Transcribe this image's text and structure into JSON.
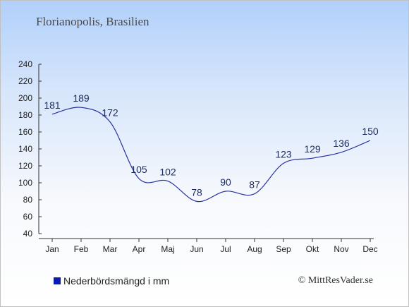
{
  "header": {
    "title": "Florianopolis, Brasilien"
  },
  "chart_data": {
    "type": "line",
    "categories": [
      "Jan",
      "Feb",
      "Mar",
      "Apr",
      "Maj",
      "Jun",
      "Jul",
      "Aug",
      "Sep",
      "Okt",
      "Nov",
      "Dec"
    ],
    "series": [
      {
        "name": "Nederbördsmängd i mm",
        "values": [
          181,
          189,
          172,
          105,
          102,
          78,
          90,
          87,
          123,
          129,
          136,
          150
        ]
      }
    ],
    "ylim": [
      40,
      240
    ],
    "yticks": [
      40,
      60,
      80,
      100,
      120,
      140,
      160,
      180,
      200,
      220,
      240
    ],
    "xlabel": "",
    "ylabel": "",
    "grid": false,
    "legend_position": "bottom-left",
    "line_color": "#2633a1",
    "label_color": "#1b2a5c",
    "axis_color": "#333333"
  },
  "legend": {
    "label": "Nederbördsmängd i mm",
    "color": "#0b1bb0"
  },
  "footer": {
    "credit": "© MittResVader.se"
  }
}
